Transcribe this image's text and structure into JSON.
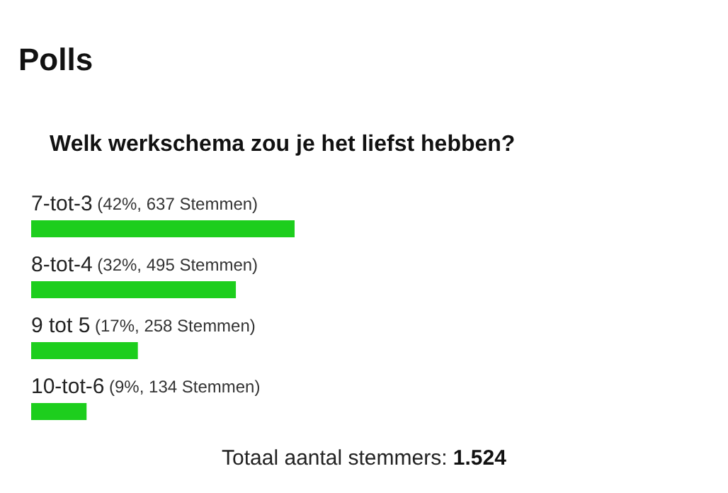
{
  "chart_data": {
    "type": "bar",
    "orientation": "horizontal",
    "title": "Polls",
    "subtitle": "Welk werkschema zou je het liefst hebben?",
    "categories": [
      "7-tot-3",
      "8-tot-4",
      "9 tot 5",
      "10-tot-6"
    ],
    "values": [
      637,
      495,
      258,
      134
    ],
    "value_labels": [
      "(42%, 637 Stemmen)",
      "(32%, 495 Stemmen)",
      "(17%, 258 Stemmen)",
      "(9%, 134 Stemmen)"
    ],
    "color": "#1dce1d",
    "annotations": [
      "Totaal aantal stemmers: 1.524"
    ]
  }
}
